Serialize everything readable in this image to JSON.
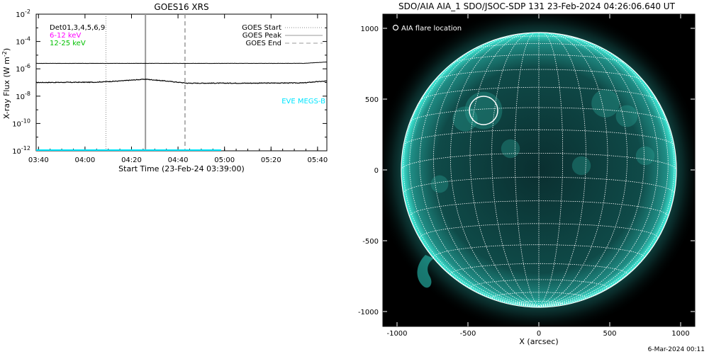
{
  "colors": {
    "flux_line": "#000000",
    "low_energy": "#ff00ff",
    "high_energy": "#00c000",
    "eve": "#00e5ff",
    "sun_base": "#0d3b3b",
    "sun_limb": "#2fe3cf"
  },
  "chart_data": [
    {
      "type": "line",
      "title": "GOES16 XRS",
      "xlabel": "Start Time (23-Feb-24 03:39:00)",
      "ylabel": "X-ray Flux (W m",
      "ylabel_sup": "-2",
      "ylabel_close": ")",
      "ylim_log10": [
        -12,
        -2
      ],
      "xlim_minutes": [
        0,
        125
      ],
      "x_ticks": [
        "03:40",
        "04:00",
        "04:20",
        "04:40",
        "05:00",
        "05:20",
        "05:40"
      ],
      "y_ticks": [
        {
          "base": "10",
          "exp": "-2"
        },
        {
          "base": "10",
          "exp": "-4"
        },
        {
          "base": "10",
          "exp": "-6"
        },
        {
          "base": "10",
          "exp": "-8"
        },
        {
          "base": "10",
          "exp": "-10"
        },
        {
          "base": "10",
          "exp": "-12"
        }
      ],
      "legend_left": [
        "Det01,3,4,5,6,9",
        "6-12 keV",
        "12-25 keV"
      ],
      "legend_right": [
        "GOES Start",
        "GOES Peak",
        "GOES End"
      ],
      "markers": {
        "start": "04:09",
        "peak": "04:26",
        "end": "04:43"
      },
      "eve_label": "EVE MEGS-B",
      "series": [
        {
          "name": "6-12 keV",
          "values_log10": [
            [
              0,
              -7.0
            ],
            [
              25,
              -6.98
            ],
            [
              35,
              -6.9
            ],
            [
              45,
              -6.78
            ],
            [
              47,
              -6.76
            ],
            [
              55,
              -6.88
            ],
            [
              65,
              -7.05
            ],
            [
              90,
              -7.05
            ],
            [
              115,
              -7.03
            ],
            [
              120,
              -6.95
            ],
            [
              125,
              -6.9
            ]
          ]
        },
        {
          "name": "12-25 keV",
          "values_log10": [
            [
              0,
              -5.6
            ],
            [
              60,
              -5.6
            ],
            [
              100,
              -5.6
            ],
            [
              115,
              -5.6
            ],
            [
              120,
              -5.55
            ],
            [
              125,
              -5.5
            ]
          ]
        }
      ]
    },
    {
      "type": "image",
      "title": "SDO/AIA AIA_1 SDO/JSOC-SDP 131 23-Feb-2024 04:26:06.640 UT",
      "xlabel": "X (arcsec)",
      "ylabel": "",
      "x_ticks": [
        "-1000",
        "-500",
        "0",
        "500",
        "1000"
      ],
      "y_ticks": [
        "1000",
        "500",
        "0",
        "-500",
        "-1000"
      ],
      "legend": "AIA flare location",
      "flare_location_arcsec": [
        -390,
        420
      ],
      "footer": "6-Mar-2024 00:11"
    }
  ]
}
